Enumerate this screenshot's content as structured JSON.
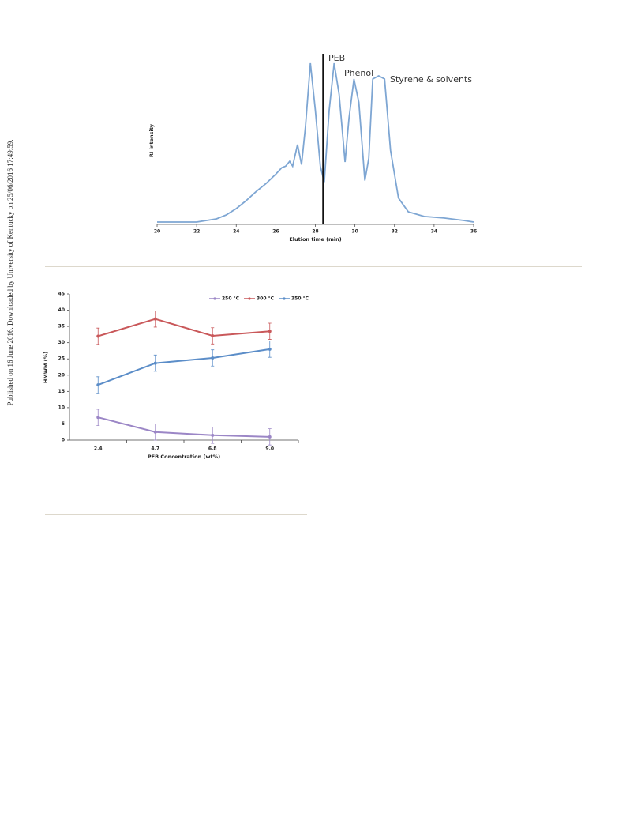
{
  "side_note": "Published on 16 June 2016. Downloaded by University of Kentucky on 25/06/2016 17:49:59.",
  "chart_data": [
    {
      "type": "line",
      "y_label": "RI intensity",
      "x_label": "Elution time (min)",
      "annotations": [
        "PEB",
        "Phenol",
        "Styrene & solvents"
      ],
      "marker_x": 28.4,
      "color": "#7ea6d3",
      "xlim": [
        20,
        36
      ],
      "xticks": [
        20,
        22,
        24,
        26,
        28,
        30,
        32,
        34,
        36
      ],
      "ylim": [
        0,
        100
      ],
      "x": [
        20,
        22,
        22.5,
        23,
        23.5,
        24,
        24.5,
        25,
        25.5,
        26,
        26.3,
        26.5,
        26.7,
        26.85,
        27.1,
        27.3,
        27.5,
        27.75,
        28,
        28.25,
        28.45,
        28.7,
        28.95,
        29.2,
        29.5,
        29.7,
        29.95,
        30.2,
        30.5,
        30.7,
        30.9,
        31.2,
        31.5,
        31.8,
        32.2,
        32.7,
        33.5,
        34.5,
        35.5,
        36
      ],
      "values": [
        0,
        0,
        1,
        2,
        4.5,
        8.4,
        13.4,
        19,
        24,
        30,
        34,
        35,
        38,
        35,
        48.5,
        36,
        60,
        99.5,
        70,
        35,
        25,
        70,
        99.5,
        80,
        37.6,
        65,
        89.6,
        75,
        26,
        40,
        89.6,
        91.6,
        89.6,
        45,
        15,
        6.4,
        3.5,
        2.5,
        1,
        0
      ]
    },
    {
      "type": "line_category",
      "y_label": "HMWM (%)",
      "x_label": "PEB Concentration (wt%)",
      "categories": [
        "2.4",
        "4.7",
        "6.8",
        "9.0"
      ],
      "ylim": [
        0,
        45
      ],
      "yticks": [
        0,
        5,
        10,
        15,
        20,
        25,
        30,
        35,
        40,
        45
      ],
      "series": [
        {
          "name": "250 °C",
          "color": "#9b86c6",
          "values": [
            7.0,
            2.5,
            1.5,
            1.0
          ],
          "errors": [
            2.5,
            2.5,
            2.5,
            2.5
          ]
        },
        {
          "name": "300 °C",
          "color": "#c9585a",
          "values": [
            32.0,
            37.3,
            32.1,
            33.5
          ],
          "errors": [
            2.5,
            2.5,
            2.5,
            2.5
          ]
        },
        {
          "name": "350 °C",
          "color": "#5b8dc8",
          "values": [
            17.0,
            23.7,
            25.3,
            28.0
          ],
          "errors": [
            2.5,
            2.5,
            2.5,
            2.5
          ]
        }
      ]
    }
  ]
}
